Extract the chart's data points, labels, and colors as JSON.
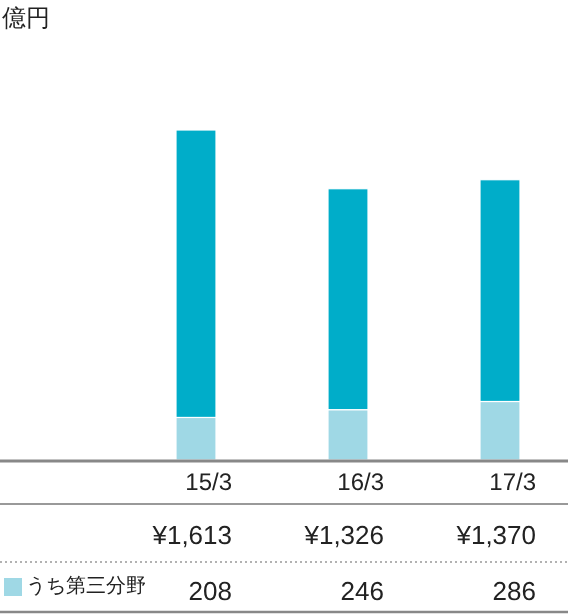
{
  "chart_data": {
    "type": "bar",
    "ylabel": "億円",
    "categories": [
      "15/3",
      "16/3",
      "17/3"
    ],
    "stacked": true,
    "legend": "bottom left",
    "series": [
      {
        "name": "うち第三分野",
        "color": "#9fd8e5",
        "values": [
          208,
          246,
          286
        ],
        "value_labels": [
          "208",
          "246",
          "286"
        ]
      },
      {
        "color": "#00adc9",
        "values": [
          1405,
          1080,
          1084
        ]
      }
    ],
    "totals": [
      "¥1,613",
      "¥1,326",
      "¥1,370"
    ]
  }
}
